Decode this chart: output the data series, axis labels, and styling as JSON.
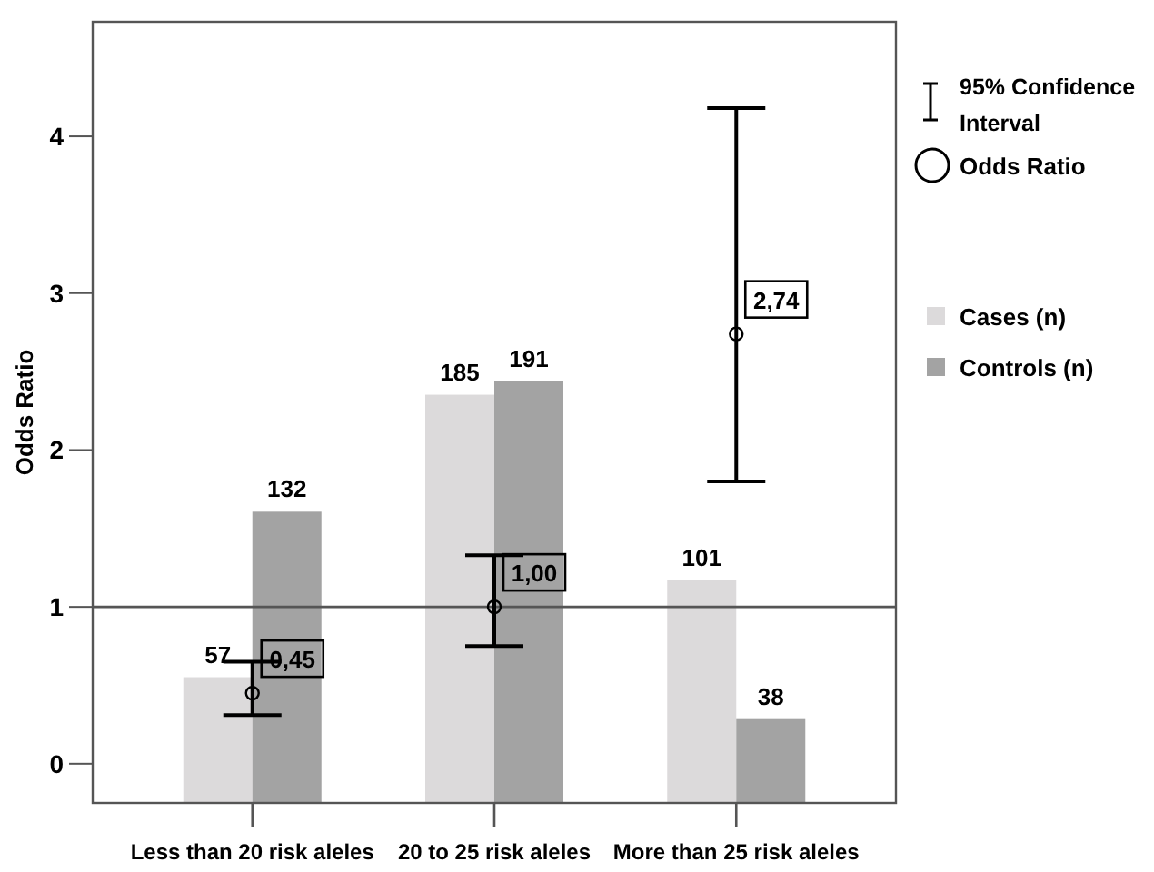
{
  "chart_data": {
    "type": "bar",
    "ylabel": "Odds Ratio",
    "categories": [
      "Less than 20 risk aleles",
      "20 to 25 risk aleles",
      "More than 25 risk aleles"
    ],
    "series": [
      {
        "name": "Cases (n)",
        "color": "#dcdadb",
        "axis": "y2",
        "values": [
          57,
          185,
          101
        ]
      },
      {
        "name": "Controls (n)",
        "color": "#a3a3a3",
        "axis": "y2",
        "values": [
          132,
          191,
          38
        ]
      },
      {
        "name": "Odds Ratio",
        "type": "scatter",
        "color": "#000000",
        "marker": "circle",
        "x": [
          "Less than 20 risk aleles",
          "20 to 25 risk aleles",
          "More than 25 risk aleles"
        ],
        "values": [
          0.45,
          1.0,
          2.74
        ],
        "errors": [
          [
            0.31,
            0.65
          ],
          [
            0.75,
            1.33
          ],
          [
            1.8,
            4.18
          ]
        ],
        "value_labels": [
          "0,45",
          "1,00",
          "2,74"
        ]
      }
    ],
    "ylim": [
      -0.25,
      4.73
    ],
    "yticks": [
      0,
      1,
      2,
      3,
      4
    ],
    "y2lim": [
      0,
      354
    ],
    "data_labels": true,
    "ref_lines": [
      {
        "axis": "y",
        "value": 1,
        "color": "#555555"
      }
    ],
    "annotations": [
      "95% Confidence Interval"
    ],
    "legend": "right",
    "grid": false
  }
}
